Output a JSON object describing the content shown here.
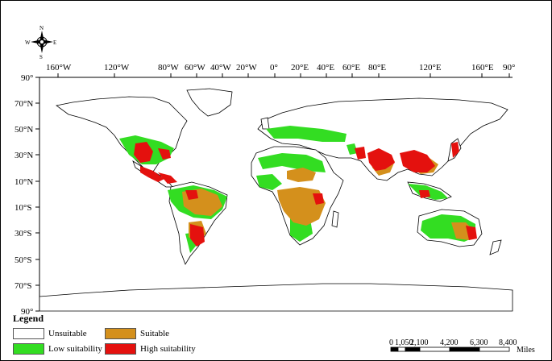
{
  "map": {
    "lon_labels": [
      "160°W",
      "120°W",
      "80°W",
      "60°W",
      "40°W",
      "20°W",
      "0°",
      "20°E",
      "40°E",
      "60°E",
      "80°E",
      "120°E",
      "160°E",
      "90°"
    ],
    "lat_labels": [
      "90°",
      "70°N",
      "50°N",
      "30°N",
      "10°N",
      "10°S",
      "30°S",
      "50°S",
      "70°S",
      "90°"
    ],
    "colors": {
      "unsuitable": "#ffffff",
      "low": "#33dd22",
      "suitable": "#d4901c",
      "high": "#e4110e"
    }
  },
  "compass": {
    "n": "N",
    "s": "S",
    "e": "E",
    "w": "W"
  },
  "legend": {
    "title": "Legend",
    "items": [
      {
        "label": "Unsuitable",
        "color": "#ffffff"
      },
      {
        "label": "Suitable",
        "color": "#d4901c"
      },
      {
        "label": "Low suitability",
        "color": "#33dd22"
      },
      {
        "label": "High suitability",
        "color": "#e4110e"
      }
    ]
  },
  "scale_bar": {
    "labels": [
      "0",
      "1,050",
      "2,100",
      "4,200",
      "6,300",
      "8,400"
    ],
    "unit": "Miles"
  }
}
